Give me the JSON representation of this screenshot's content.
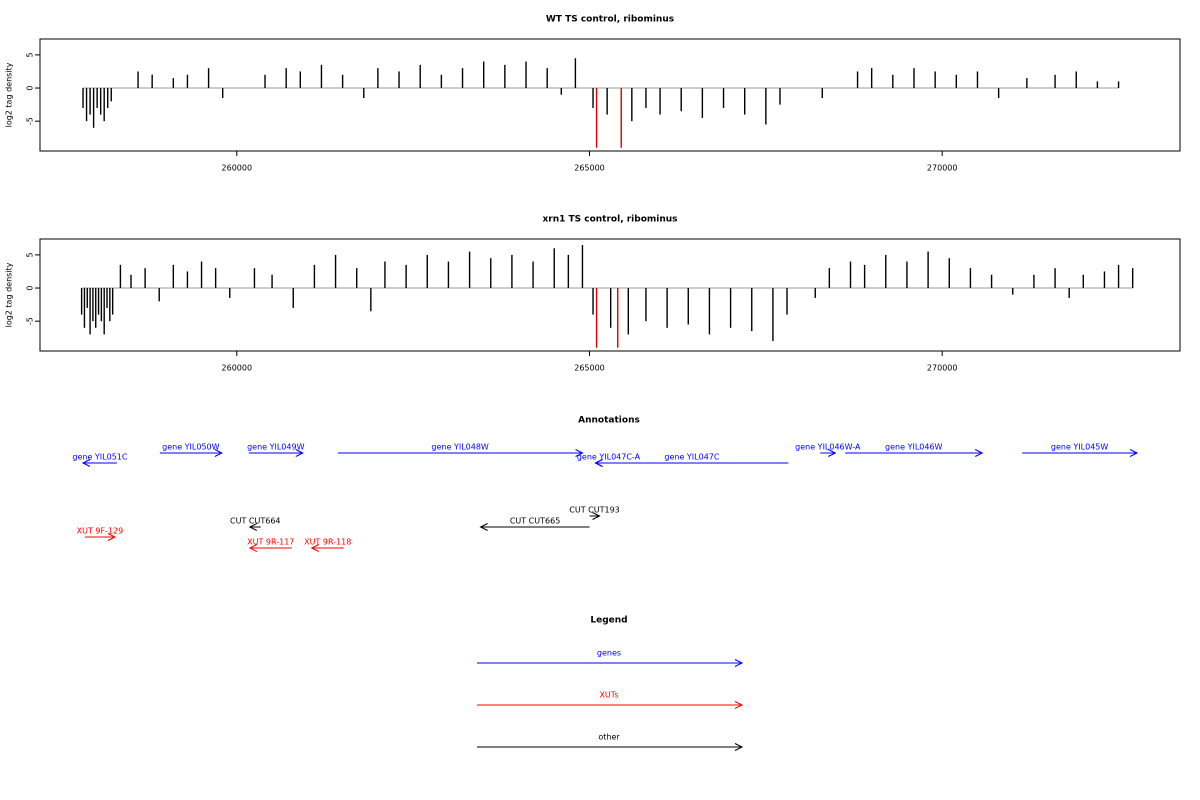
{
  "chart_data": [
    {
      "type": "bar",
      "title": "WT TS control, ribominus",
      "ylabel": "log2 tag density",
      "xlim": [
        257210,
        273371
      ],
      "ylim": [
        -9.5,
        7.4
      ],
      "xticks": [
        260000,
        265000,
        270000
      ],
      "yticks": [
        -5,
        0,
        5
      ],
      "series": [
        {
          "color": "#000000",
          "x": [
            257820,
            257870,
            257920,
            257970,
            258020,
            258070,
            258120,
            258170,
            258220,
            258600,
            258800,
            259100,
            259300,
            259600,
            259800,
            260400,
            260700,
            260900,
            261200,
            261500,
            261800,
            262000,
            262300,
            262600,
            262900,
            263200,
            263500,
            263800,
            264100,
            264400,
            264600,
            264800,
            265050,
            265250,
            265600,
            265800,
            266000,
            266300,
            266600,
            266900,
            267200,
            267500,
            267700,
            268300,
            268800,
            269000,
            269300,
            269600,
            269900,
            270200,
            270500,
            270800,
            271200,
            271600,
            271900,
            272200,
            272500
          ],
          "values": [
            -3,
            -5,
            -4,
            -6,
            -3,
            -4,
            -5,
            -3,
            -2,
            2.5,
            2,
            1.5,
            2,
            3,
            -1.5,
            2,
            3,
            2.5,
            3.5,
            2,
            -1.5,
            3,
            2.5,
            3.5,
            2,
            3,
            4,
            3.5,
            4,
            3,
            -1,
            4.5,
            -3,
            -4,
            -5,
            -3,
            -4,
            -3.5,
            -4.5,
            -3,
            -4,
            -5.5,
            -2.5,
            -1.5,
            2.5,
            3,
            2,
            3,
            2.5,
            2,
            2.5,
            -1.5,
            1.5,
            2,
            2.5,
            1,
            1
          ]
        },
        {
          "color": "#dd0000",
          "x": [
            265100,
            265450
          ],
          "values": [
            -9,
            -9
          ]
        }
      ]
    },
    {
      "type": "bar",
      "title": "xrn1 TS control, ribominus",
      "ylabel": "log2 tag density",
      "xlim": [
        257210,
        273371
      ],
      "ylim": [
        -9.5,
        7.4
      ],
      "xticks": [
        260000,
        265000,
        270000
      ],
      "yticks": [
        -5,
        0,
        5
      ],
      "series": [
        {
          "color": "#000000",
          "x": [
            257800,
            257840,
            257880,
            257920,
            257960,
            258000,
            258040,
            258080,
            258120,
            258160,
            258200,
            258240,
            258350,
            258500,
            258700,
            258900,
            259100,
            259300,
            259500,
            259700,
            259900,
            260250,
            260500,
            260800,
            261100,
            261400,
            261700,
            261900,
            262100,
            262400,
            262700,
            263000,
            263300,
            263600,
            263900,
            264200,
            264500,
            264700,
            264900,
            265050,
            265300,
            265550,
            265800,
            266100,
            266400,
            266700,
            267000,
            267300,
            267600,
            267800,
            268200,
            268400,
            268700,
            268900,
            269200,
            269500,
            269800,
            270100,
            270400,
            270700,
            271000,
            271300,
            271600,
            271800,
            272000,
            272300,
            272500,
            272700
          ],
          "values": [
            -4,
            -6,
            -3,
            -7,
            -5,
            -6,
            -4,
            -5,
            -7,
            -3,
            -5,
            -4,
            3.5,
            2,
            3,
            -2,
            3.5,
            2.5,
            4,
            3,
            -1.5,
            3,
            2,
            -3,
            3.5,
            5,
            3,
            -3.5,
            4,
            3.5,
            5,
            4,
            5.5,
            4.5,
            5,
            4,
            6,
            5,
            6.5,
            -4,
            -6,
            -7,
            -5,
            -6,
            -5.5,
            -7,
            -6,
            -6.5,
            -8,
            -4,
            -1.5,
            3,
            4,
            3.5,
            5,
            4,
            5.5,
            4.5,
            3,
            2,
            -1,
            2,
            3,
            -1.5,
            2,
            2.5,
            3.5,
            3
          ]
        },
        {
          "color": "#dd0000",
          "x": [
            265100,
            265400
          ],
          "values": [
            -9,
            -9
          ]
        }
      ]
    }
  ],
  "annotations": {
    "title": "Annotations",
    "features": [
      {
        "label": "gene YIL051C",
        "start": 257819,
        "end": 258300,
        "strand": "-",
        "kind": "gene",
        "color": "#0000ff"
      },
      {
        "label": "gene YIL050W",
        "start": 258909,
        "end": 259788,
        "strand": "+",
        "kind": "gene",
        "color": "#0000ff"
      },
      {
        "label": "gene YIL049W",
        "start": 260170,
        "end": 260935,
        "strand": "+",
        "kind": "gene",
        "color": "#0000ff"
      },
      {
        "label": "gene YIL048W",
        "start": 261431,
        "end": 264901,
        "strand": "+",
        "kind": "gene",
        "color": "#0000ff"
      },
      {
        "label": "gene YIL047C-A",
        "start": 265085,
        "end": 265453,
        "strand": "-",
        "kind": "gene",
        "color": "#0000ff"
      },
      {
        "label": "gene YIL047C",
        "start": 265085,
        "end": 267819,
        "strand": "-",
        "kind": "gene",
        "color": "#0000ff"
      },
      {
        "label": "gene YIL046W-A",
        "start": 268272,
        "end": 268484,
        "strand": "+",
        "kind": "gene",
        "color": "#0000ff"
      },
      {
        "label": "gene YIL046W",
        "start": 268626,
        "end": 270567,
        "strand": "+",
        "kind": "gene",
        "color": "#0000ff"
      },
      {
        "label": "gene YIL045W",
        "start": 271133,
        "end": 272762,
        "strand": "+",
        "kind": "gene",
        "color": "#0000ff"
      },
      {
        "label": "CUT CUT664",
        "start": 260184,
        "end": 260340,
        "strand": "-",
        "kind": "other",
        "color": "#000000"
      },
      {
        "label": "CUT CUT193",
        "start": 265000,
        "end": 265142,
        "strand": "+",
        "kind": "other",
        "color": "#000000"
      },
      {
        "label": "CUT CUT665",
        "start": 263456,
        "end": 265000,
        "strand": "-",
        "kind": "other",
        "color": "#000000"
      },
      {
        "label": "XUT 9F-129",
        "start": 257847,
        "end": 258272,
        "strand": "+",
        "kind": "XUT",
        "color": "#ff0000"
      },
      {
        "label": "XUT 9R-117",
        "start": 260184,
        "end": 260779,
        "strand": "-",
        "kind": "XUT",
        "color": "#ff0000"
      },
      {
        "label": "XUT 9R-118",
        "start": 261062,
        "end": 261516,
        "strand": "-",
        "kind": "XUT",
        "color": "#ff0000"
      }
    ]
  },
  "legend": {
    "title": "Legend",
    "items": [
      {
        "label": "genes",
        "color": "#0000ff"
      },
      {
        "label": "XUTs",
        "color": "#ff0000"
      },
      {
        "label": "other",
        "color": "#000000"
      }
    ]
  }
}
